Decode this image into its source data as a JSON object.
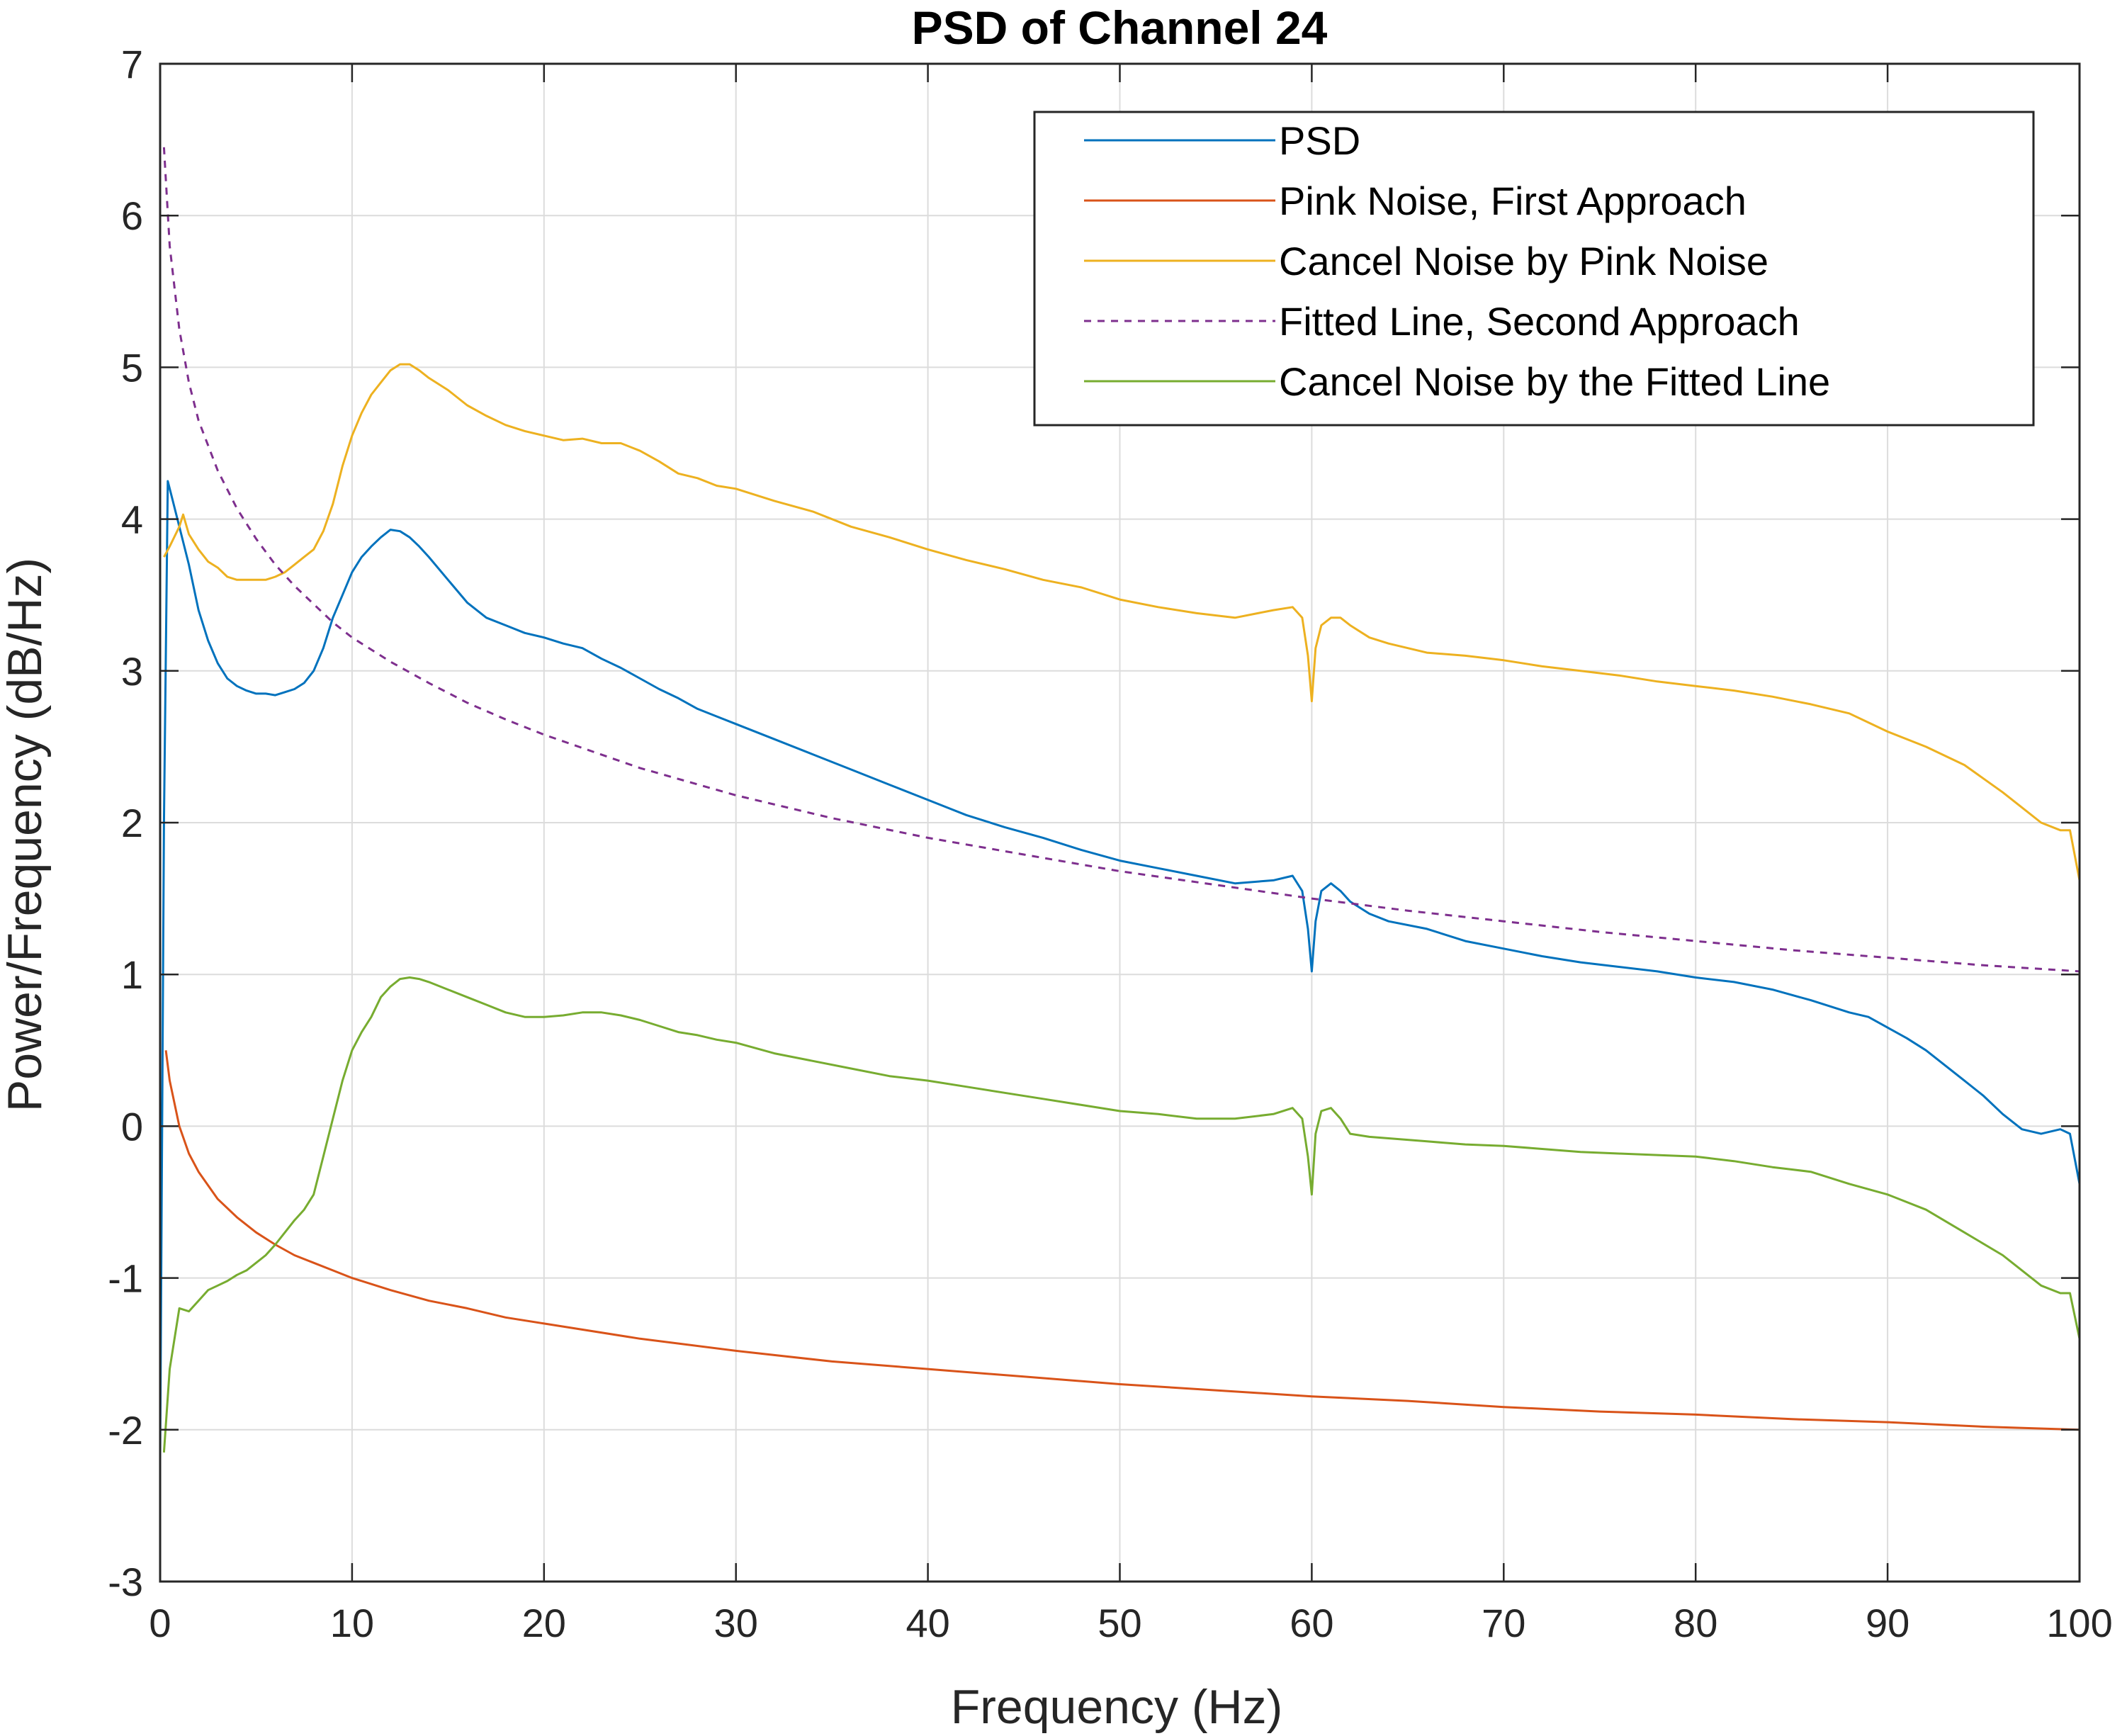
{
  "chart_data": {
    "type": "line",
    "title": "PSD of Channel 24",
    "xlabel": "Frequency (Hz)",
    "ylabel": "Power/Frequency (dB/Hz)",
    "xlim": [
      0,
      100
    ],
    "ylim": [
      -3,
      7
    ],
    "xticks": [
      "0",
      "10",
      "20",
      "30",
      "40",
      "50",
      "60",
      "70",
      "80",
      "90",
      "100"
    ],
    "yticks": [
      "-3",
      "-2",
      "-1",
      "0",
      "1",
      "2",
      "3",
      "4",
      "5",
      "6",
      "7"
    ],
    "grid": true,
    "legend_position": "top-right",
    "series": [
      {
        "name": "PSD",
        "color": "#0072BD",
        "dash": false,
        "x": [
          0,
          0.2,
          0.4,
          0.6,
          1,
          1.5,
          2,
          2.5,
          3,
          3.5,
          4,
          4.5,
          5,
          5.5,
          6,
          6.5,
          7,
          7.5,
          8,
          8.5,
          9,
          9.5,
          10,
          10.5,
          11,
          11.5,
          12,
          12.5,
          13,
          13.5,
          14,
          15,
          16,
          17,
          18,
          19,
          20,
          21,
          22,
          23,
          24,
          25,
          26,
          27,
          28,
          29,
          30,
          32,
          34,
          36,
          38,
          40,
          42,
          44,
          46,
          48,
          50,
          52,
          54,
          56,
          58,
          59,
          59.5,
          59.8,
          60,
          60.2,
          60.5,
          61,
          61.5,
          62,
          63,
          64,
          66,
          68,
          70,
          72,
          74,
          76,
          78,
          80,
          82,
          84,
          86,
          88,
          89,
          90,
          91,
          92,
          93,
          94,
          95,
          96,
          97,
          98,
          99,
          99.5,
          100
        ],
        "y": [
          -2.2,
          2.0,
          4.25,
          4.15,
          3.95,
          3.7,
          3.4,
          3.2,
          3.05,
          2.95,
          2.9,
          2.87,
          2.85,
          2.85,
          2.84,
          2.86,
          2.88,
          2.92,
          3.0,
          3.15,
          3.35,
          3.5,
          3.65,
          3.75,
          3.82,
          3.88,
          3.93,
          3.92,
          3.88,
          3.82,
          3.75,
          3.6,
          3.45,
          3.35,
          3.3,
          3.25,
          3.22,
          3.18,
          3.15,
          3.08,
          3.02,
          2.95,
          2.88,
          2.82,
          2.75,
          2.7,
          2.65,
          2.55,
          2.45,
          2.35,
          2.25,
          2.15,
          2.05,
          1.97,
          1.9,
          1.82,
          1.75,
          1.7,
          1.65,
          1.6,
          1.62,
          1.65,
          1.55,
          1.3,
          1.02,
          1.35,
          1.55,
          1.6,
          1.55,
          1.48,
          1.4,
          1.35,
          1.3,
          1.22,
          1.17,
          1.12,
          1.08,
          1.05,
          1.02,
          0.98,
          0.95,
          0.9,
          0.83,
          0.75,
          0.72,
          0.65,
          0.58,
          0.5,
          0.4,
          0.3,
          0.2,
          0.08,
          -0.02,
          -0.05,
          -0.02,
          -0.05,
          -0.38
        ]
      },
      {
        "name": "Pink Noise, First Approach",
        "color": "#D95319",
        "dash": false,
        "x": [
          0.3,
          0.5,
          1,
          1.5,
          2,
          3,
          4,
          5,
          6,
          7,
          8,
          9,
          10,
          12,
          14,
          16,
          18,
          20,
          25,
          30,
          35,
          40,
          45,
          50,
          55,
          60,
          65,
          70,
          75,
          80,
          85,
          90,
          95,
          100
        ],
        "y": [
          0.5,
          0.3,
          0.0,
          -0.18,
          -0.3,
          -0.48,
          -0.6,
          -0.7,
          -0.78,
          -0.85,
          -0.9,
          -0.95,
          -1.0,
          -1.08,
          -1.15,
          -1.2,
          -1.26,
          -1.3,
          -1.4,
          -1.48,
          -1.55,
          -1.6,
          -1.65,
          -1.7,
          -1.74,
          -1.78,
          -1.81,
          -1.85,
          -1.88,
          -1.9,
          -1.93,
          -1.95,
          -1.98,
          -2.0
        ]
      },
      {
        "name": "Cancel Noise by Pink Noise",
        "color": "#EDB120",
        "dash": false,
        "x": [
          0.2,
          0.5,
          1,
          1.2,
          1.5,
          2,
          2.5,
          3,
          3.5,
          4,
          4.5,
          5,
          5.5,
          6,
          6.5,
          7,
          7.5,
          8,
          8.5,
          9,
          9.5,
          10,
          10.5,
          11,
          11.5,
          12,
          12.5,
          13,
          13.5,
          14,
          15,
          16,
          17,
          18,
          19,
          20,
          21,
          22,
          23,
          24,
          25,
          26,
          27,
          28,
          29,
          30,
          32,
          34,
          36,
          38,
          40,
          42,
          44,
          46,
          48,
          50,
          52,
          54,
          56,
          58,
          59,
          59.5,
          59.8,
          60,
          60.2,
          60.5,
          61,
          61.5,
          62,
          63,
          64,
          66,
          68,
          70,
          72,
          74,
          76,
          78,
          80,
          82,
          84,
          86,
          88,
          90,
          92,
          94,
          96,
          98,
          99,
          99.5,
          100
        ],
        "y": [
          3.75,
          3.82,
          3.95,
          4.03,
          3.9,
          3.8,
          3.72,
          3.68,
          3.62,
          3.6,
          3.6,
          3.6,
          3.6,
          3.62,
          3.65,
          3.7,
          3.75,
          3.8,
          3.92,
          4.1,
          4.35,
          4.55,
          4.7,
          4.82,
          4.9,
          4.98,
          5.02,
          5.02,
          4.98,
          4.93,
          4.85,
          4.75,
          4.68,
          4.62,
          4.58,
          4.55,
          4.52,
          4.53,
          4.5,
          4.5,
          4.45,
          4.38,
          4.3,
          4.27,
          4.22,
          4.2,
          4.12,
          4.05,
          3.95,
          3.88,
          3.8,
          3.73,
          3.67,
          3.6,
          3.55,
          3.47,
          3.42,
          3.38,
          3.35,
          3.4,
          3.42,
          3.35,
          3.1,
          2.8,
          3.15,
          3.3,
          3.35,
          3.35,
          3.3,
          3.22,
          3.18,
          3.12,
          3.1,
          3.07,
          3.03,
          3.0,
          2.97,
          2.93,
          2.9,
          2.87,
          2.83,
          2.78,
          2.72,
          2.6,
          2.5,
          2.38,
          2.2,
          2.0,
          1.95,
          1.95,
          1.62
        ]
      },
      {
        "name": "Fitted Line, Second Approach",
        "color": "#7E2F8E",
        "dash": true,
        "x": [
          0.2,
          0.5,
          1,
          1.5,
          2,
          3,
          4,
          5,
          6,
          7,
          8,
          9,
          10,
          12,
          14,
          16,
          18,
          20,
          25,
          30,
          35,
          40,
          45,
          50,
          55,
          60,
          65,
          70,
          75,
          80,
          85,
          90,
          95,
          100
        ],
        "y": [
          6.45,
          5.8,
          5.25,
          4.9,
          4.65,
          4.32,
          4.07,
          3.87,
          3.7,
          3.56,
          3.44,
          3.32,
          3.22,
          3.06,
          2.92,
          2.79,
          2.68,
          2.58,
          2.36,
          2.18,
          2.03,
          1.9,
          1.79,
          1.68,
          1.59,
          1.5,
          1.42,
          1.35,
          1.28,
          1.22,
          1.16,
          1.11,
          1.06,
          1.02
        ]
      },
      {
        "name": "Cancel Noise by the Fitted Line",
        "color": "#77AC30",
        "dash": false,
        "x": [
          0.2,
          0.5,
          1,
          1.5,
          2,
          2.5,
          3,
          3.5,
          4,
          4.5,
          5,
          5.5,
          6,
          6.5,
          7,
          7.5,
          8,
          8.5,
          9,
          9.5,
          10,
          10.5,
          11,
          11.5,
          12,
          12.5,
          13,
          13.5,
          14,
          15,
          16,
          17,
          18,
          19,
          20,
          21,
          22,
          23,
          24,
          25,
          26,
          27,
          28,
          29,
          30,
          32,
          34,
          36,
          38,
          40,
          42,
          44,
          46,
          48,
          50,
          52,
          54,
          56,
          58,
          59,
          59.5,
          59.8,
          60,
          60.2,
          60.5,
          61,
          61.5,
          62,
          63,
          64,
          66,
          68,
          70,
          72,
          74,
          76,
          78,
          80,
          82,
          84,
          86,
          88,
          90,
          92,
          94,
          96,
          98,
          99,
          99.5,
          100
        ],
        "y": [
          -2.15,
          -1.6,
          -1.2,
          -1.22,
          -1.15,
          -1.08,
          -1.05,
          -1.02,
          -0.98,
          -0.95,
          -0.9,
          -0.85,
          -0.78,
          -0.7,
          -0.62,
          -0.55,
          -0.45,
          -0.2,
          0.05,
          0.3,
          0.5,
          0.62,
          0.72,
          0.85,
          0.92,
          0.97,
          0.98,
          0.97,
          0.95,
          0.9,
          0.85,
          0.8,
          0.75,
          0.72,
          0.72,
          0.73,
          0.75,
          0.75,
          0.73,
          0.7,
          0.66,
          0.62,
          0.6,
          0.57,
          0.55,
          0.48,
          0.43,
          0.38,
          0.33,
          0.3,
          0.26,
          0.22,
          0.18,
          0.14,
          0.1,
          0.08,
          0.05,
          0.05,
          0.08,
          0.12,
          0.05,
          -0.2,
          -0.45,
          -0.05,
          0.1,
          0.12,
          0.05,
          -0.05,
          -0.07,
          -0.08,
          -0.1,
          -0.12,
          -0.13,
          -0.15,
          -0.17,
          -0.18,
          -0.19,
          -0.2,
          -0.23,
          -0.27,
          -0.3,
          -0.38,
          -0.45,
          -0.55,
          -0.7,
          -0.85,
          -1.05,
          -1.1,
          -1.1,
          -1.4
        ]
      }
    ]
  }
}
